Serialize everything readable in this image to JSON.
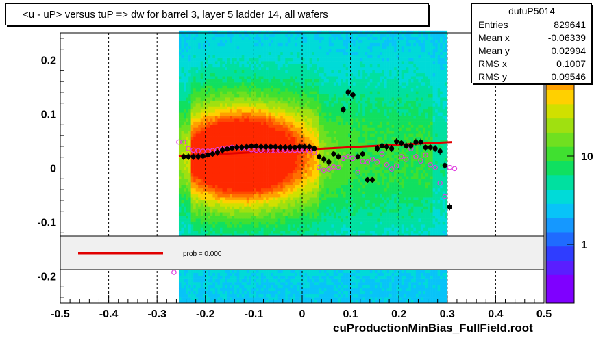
{
  "title": "<u - uP>       versus  tuP =>  dw for barrel 3, layer 5 ladder 14, all wafers",
  "stats": {
    "name": "dutuP5014",
    "rows": [
      {
        "label": "Entries",
        "value": "829641"
      },
      {
        "label": "Mean x",
        "value": "-0.06339"
      },
      {
        "label": "Mean y",
        "value": "0.02994"
      },
      {
        "label": "RMS x",
        "value": "0.1007"
      },
      {
        "label": "RMS y",
        "value": "0.09546"
      }
    ]
  },
  "footer": "cuProductionMinBias_FullField.root",
  "legend": {
    "fit_label": "prob = 0.000"
  },
  "chart_data": {
    "type": "heatmap",
    "xlim": [
      -0.5,
      0.5
    ],
    "ylim": [
      -0.25,
      0.25
    ],
    "x_ticks": [
      "-0.5",
      "-0.4",
      "-0.3",
      "-0.2",
      "-0.1",
      "0",
      "0.1",
      "0.2",
      "0.3",
      "0.4",
      "0.5"
    ],
    "y_ticks": [
      "-0.2",
      "-0.1",
      "0",
      "0.1",
      "0.2"
    ],
    "z_ticks": [
      "1",
      "10"
    ],
    "z_scale": "log",
    "grid": true,
    "color_palette": [
      "#7f00ff",
      "#5a1eff",
      "#2f3dff",
      "#1f6bff",
      "#1598ff",
      "#08c3f8",
      "#00dbd8",
      "#00e0a0",
      "#10e060",
      "#40e030",
      "#70e020",
      "#a0e010",
      "#d0e000",
      "#ffd000",
      "#ffa000",
      "#ff7000",
      "#ff4a00",
      "#ff2800"
    ],
    "fit_line": {
      "color": "#e00000",
      "points": [
        [
          -0.255,
          0.022
        ],
        [
          0.31,
          0.048
        ]
      ]
    },
    "black_points": [
      [
        -0.245,
        0.021
      ],
      [
        -0.235,
        0.021
      ],
      [
        -0.225,
        0.021
      ],
      [
        -0.215,
        0.021
      ],
      [
        -0.205,
        0.022
      ],
      [
        -0.195,
        0.024
      ],
      [
        -0.185,
        0.026
      ],
      [
        -0.175,
        0.029
      ],
      [
        -0.165,
        0.033
      ],
      [
        -0.155,
        0.035
      ],
      [
        -0.145,
        0.037
      ],
      [
        -0.135,
        0.038
      ],
      [
        -0.125,
        0.038
      ],
      [
        -0.115,
        0.039
      ],
      [
        -0.105,
        0.04
      ],
      [
        -0.095,
        0.04
      ],
      [
        -0.085,
        0.039
      ],
      [
        -0.075,
        0.039
      ],
      [
        -0.065,
        0.039
      ],
      [
        -0.055,
        0.039
      ],
      [
        -0.045,
        0.038
      ],
      [
        -0.035,
        0.038
      ],
      [
        -0.025,
        0.038
      ],
      [
        -0.015,
        0.038
      ],
      [
        -0.005,
        0.039
      ],
      [
        0.005,
        0.039
      ],
      [
        0.015,
        0.039
      ],
      [
        0.025,
        0.036
      ],
      [
        0.035,
        0.021
      ],
      [
        0.045,
        0.016
      ],
      [
        0.055,
        0.011
      ],
      [
        0.065,
        0.026
      ],
      [
        0.075,
        0.021
      ],
      [
        0.085,
        0.108
      ],
      [
        0.095,
        0.14
      ],
      [
        0.105,
        0.135
      ],
      [
        0.115,
        0.021
      ],
      [
        0.125,
        0.026
      ],
      [
        0.135,
        -0.022
      ],
      [
        0.145,
        -0.022
      ],
      [
        0.155,
        0.036
      ],
      [
        0.165,
        0.041
      ],
      [
        0.175,
        0.039
      ],
      [
        0.185,
        0.036
      ],
      [
        0.195,
        0.049
      ],
      [
        0.205,
        0.046
      ],
      [
        0.215,
        0.041
      ],
      [
        0.225,
        0.041
      ],
      [
        0.235,
        0.048
      ],
      [
        0.245,
        0.048
      ],
      [
        0.255,
        0.038
      ],
      [
        0.265,
        0.038
      ],
      [
        0.275,
        0.036
      ],
      [
        0.285,
        0.031
      ],
      [
        0.295,
        0.005
      ],
      [
        0.305,
        -0.072
      ]
    ],
    "magenta_points": [
      [
        -0.255,
        0.048
      ],
      [
        -0.245,
        0.048
      ],
      [
        -0.235,
        0.036
      ],
      [
        -0.225,
        0.033
      ],
      [
        -0.215,
        0.032
      ],
      [
        -0.205,
        0.031
      ],
      [
        -0.195,
        0.031
      ],
      [
        -0.185,
        0.032
      ],
      [
        -0.175,
        0.034
      ],
      [
        -0.165,
        0.036
      ],
      [
        -0.155,
        0.037
      ],
      [
        -0.145,
        0.038
      ],
      [
        -0.135,
        0.038
      ],
      [
        -0.125,
        0.037
      ],
      [
        -0.115,
        0.036
      ],
      [
        -0.105,
        0.034
      ],
      [
        -0.095,
        0.033
      ],
      [
        -0.085,
        0.033
      ],
      [
        -0.075,
        0.032
      ],
      [
        -0.065,
        0.032
      ],
      [
        -0.055,
        0.032
      ],
      [
        -0.045,
        0.032
      ],
      [
        -0.035,
        0.033
      ],
      [
        -0.025,
        0.033
      ],
      [
        -0.015,
        0.033
      ],
      [
        -0.005,
        0.033
      ],
      [
        0.005,
        0.032
      ],
      [
        0.015,
        0.031
      ],
      [
        0.025,
        0.028
      ],
      [
        0.035,
        0.001
      ],
      [
        0.045,
        -0.005
      ],
      [
        0.055,
        -0.002
      ],
      [
        0.065,
        0.002
      ],
      [
        0.075,
        0.001
      ],
      [
        0.085,
        0.018
      ],
      [
        0.095,
        0.021
      ],
      [
        0.105,
        0.018
      ],
      [
        0.115,
        -0.008
      ],
      [
        0.125,
        0.012
      ],
      [
        0.135,
        0.011
      ],
      [
        0.145,
        0.016
      ],
      [
        0.155,
        0.011
      ],
      [
        0.165,
        0.026
      ],
      [
        0.175,
        0.006
      ],
      [
        0.185,
        -0.002
      ],
      [
        0.195,
        0.004
      ],
      [
        0.205,
        0.021
      ],
      [
        0.215,
        0.016
      ],
      [
        0.225,
        0.036
      ],
      [
        0.235,
        0.021
      ],
      [
        0.245,
        0.013
      ],
      [
        0.255,
        0.024
      ],
      [
        0.265,
        0.006
      ],
      [
        0.275,
        0.001
      ],
      [
        0.285,
        -0.028
      ],
      [
        0.295,
        -0.053
      ],
      [
        0.305,
        0.001
      ],
      [
        0.315,
        -0.001
      ],
      [
        -0.265,
        -0.193
      ]
    ]
  }
}
